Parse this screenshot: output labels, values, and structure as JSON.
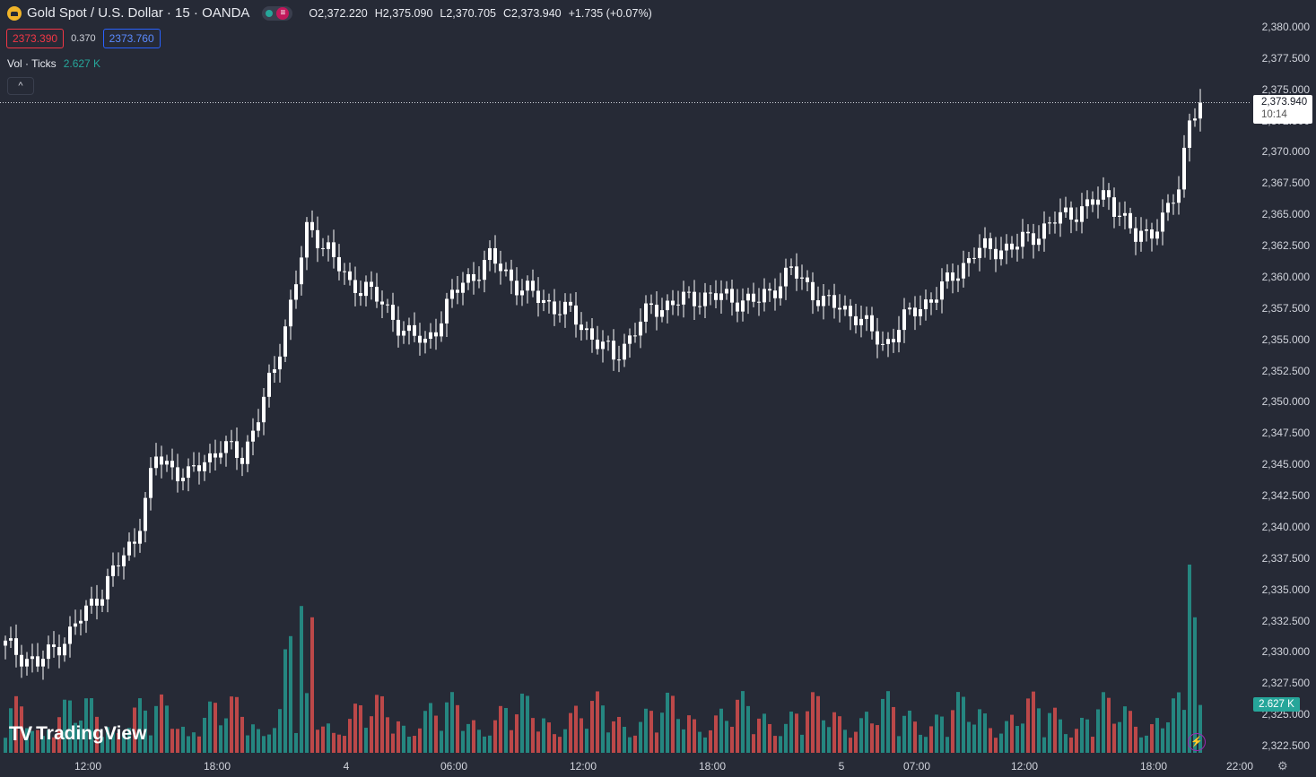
{
  "header": {
    "title": "Gold Spot / U.S. Dollar · 15 · OANDA",
    "open": "O2,372.220",
    "high": "H2,375.090",
    "low": "L2,370.705",
    "close": "C2,373.940",
    "change": "+1.735 (+0.07%)",
    "menu_icon": "≡"
  },
  "quote": {
    "bid": "2373.390",
    "spread": "0.370",
    "ask": "2373.760"
  },
  "volume_legend": {
    "label": "Vol · Ticks",
    "value": "2.627 K"
  },
  "collapse_icon": "^",
  "last_price": {
    "price": "2,373.940",
    "countdown": "10:14"
  },
  "volume_badge": "2.627 K",
  "brand": {
    "logo": "TV",
    "name": "TradingView"
  },
  "colors": {
    "up": "#26a69a",
    "down": "#ef5350",
    "candle": "#ffffff",
    "background": "#262a36"
  },
  "y_axis": [
    "2,380.000",
    "2,377.500",
    "2,375.000",
    "2,372.500",
    "2,370.000",
    "2,367.500",
    "2,365.000",
    "2,362.500",
    "2,360.000",
    "2,357.500",
    "2,355.000",
    "2,352.500",
    "2,350.000",
    "2,347.500",
    "2,345.000",
    "2,342.500",
    "2,340.000",
    "2,337.500",
    "2,335.000",
    "2,332.500",
    "2,330.000",
    "2,327.500",
    "2,325.000",
    "2,322.500"
  ],
  "x_axis": [
    "12:00",
    "18:00",
    "4",
    "06:00",
    "12:00",
    "18:00",
    "5",
    "07:00",
    "12:00",
    "18:00",
    "22:00"
  ],
  "chart_data": {
    "type": "candlestick",
    "interval": "15",
    "y_range": [
      2321.5,
      2381.0
    ],
    "keypoints": [
      {
        "i": 0,
        "c": 2330.5
      },
      {
        "i": 6,
        "c": 2329.0
      },
      {
        "i": 12,
        "c": 2331.5
      },
      {
        "i": 18,
        "c": 2335.0
      },
      {
        "i": 24,
        "c": 2339.0
      },
      {
        "i": 28,
        "c": 2345.5
      },
      {
        "i": 34,
        "c": 2344.0
      },
      {
        "i": 40,
        "c": 2346.5
      },
      {
        "i": 44,
        "c": 2345.5
      },
      {
        "i": 50,
        "c": 2352.5
      },
      {
        "i": 53,
        "c": 2358.0
      },
      {
        "i": 56,
        "c": 2363.5
      },
      {
        "i": 60,
        "c": 2362.5
      },
      {
        "i": 64,
        "c": 2359.0
      },
      {
        "i": 67,
        "c": 2359.5
      },
      {
        "i": 71,
        "c": 2357.0
      },
      {
        "i": 78,
        "c": 2354.5
      },
      {
        "i": 83,
        "c": 2358.5
      },
      {
        "i": 90,
        "c": 2361.5
      },
      {
        "i": 96,
        "c": 2359.0
      },
      {
        "i": 105,
        "c": 2357.0
      },
      {
        "i": 113,
        "c": 2353.5
      },
      {
        "i": 120,
        "c": 2357.5
      },
      {
        "i": 130,
        "c": 2358.5
      },
      {
        "i": 140,
        "c": 2358.0
      },
      {
        "i": 146,
        "c": 2360.5
      },
      {
        "i": 152,
        "c": 2358.0
      },
      {
        "i": 158,
        "c": 2357.0
      },
      {
        "i": 163,
        "c": 2354.5
      },
      {
        "i": 168,
        "c": 2357.0
      },
      {
        "i": 174,
        "c": 2359.0
      },
      {
        "i": 180,
        "c": 2362.0
      },
      {
        "i": 188,
        "c": 2362.5
      },
      {
        "i": 195,
        "c": 2364.5
      },
      {
        "i": 200,
        "c": 2365.5
      },
      {
        "i": 205,
        "c": 2366.5
      },
      {
        "i": 210,
        "c": 2363.0
      },
      {
        "i": 215,
        "c": 2364.5
      },
      {
        "i": 218,
        "c": 2367.0
      },
      {
        "i": 220,
        "c": 2373.0
      },
      {
        "i": 222,
        "c": 2373.94
      }
    ],
    "volume_spikes": [
      {
        "i": 52,
        "v": 0.55
      },
      {
        "i": 53,
        "v": 0.62
      },
      {
        "i": 55,
        "v": 0.78
      },
      {
        "i": 57,
        "v": 0.72
      },
      {
        "i": 220,
        "v": 1.0
      },
      {
        "i": 221,
        "v": 0.72
      }
    ]
  }
}
